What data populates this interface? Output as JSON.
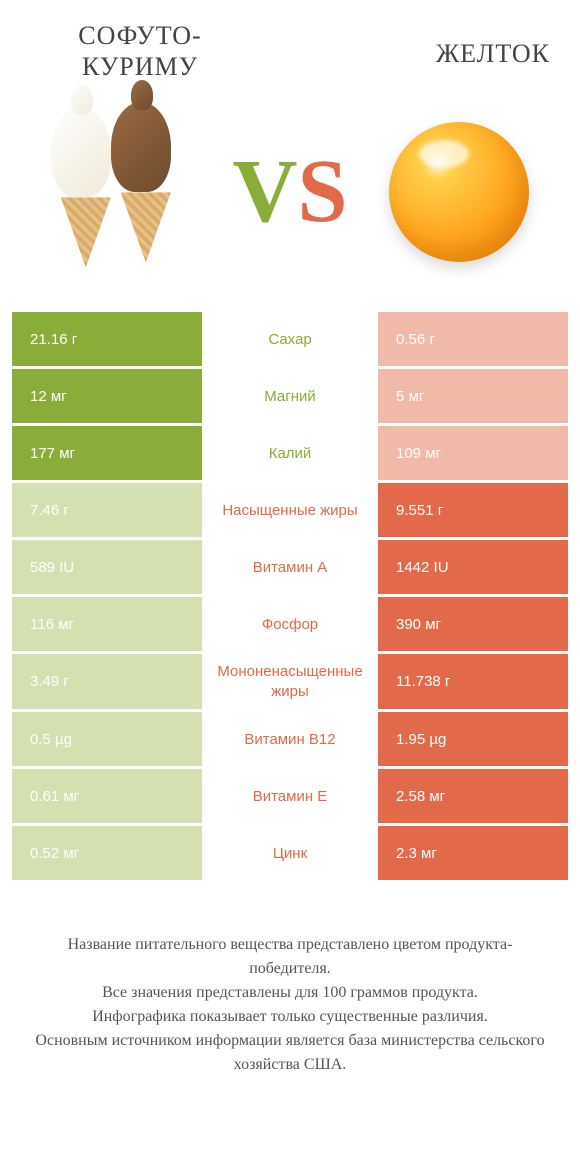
{
  "header": {
    "left_title": "СОФУТО-КУРИМУ",
    "right_title": "ЖЕЛТОК",
    "vs_v": "V",
    "vs_s": "S"
  },
  "colors": {
    "green_strong": "#8aad3a",
    "green_soft": "#d5e0b0",
    "orange_strong": "#e26a4a",
    "orange_soft": "#f0b9a8",
    "background": "#ffffff",
    "text": "#555555"
  },
  "table": {
    "left_win_color": "#8aad3a",
    "right_win_color": "#e26a4a",
    "rows": [
      {
        "left": "21.16 г",
        "label": "Сахар",
        "right": "0.56 г",
        "winner": "left"
      },
      {
        "left": "12 мг",
        "label": "Магний",
        "right": "5 мг",
        "winner": "left"
      },
      {
        "left": "177 мг",
        "label": "Калий",
        "right": "109 мг",
        "winner": "left"
      },
      {
        "left": "7.46 г",
        "label": "Насыщенные жиры",
        "right": "9.551 г",
        "winner": "right"
      },
      {
        "left": "589 IU",
        "label": "Витамин A",
        "right": "1442 IU",
        "winner": "right"
      },
      {
        "left": "116 мг",
        "label": "Фосфор",
        "right": "390 мг",
        "winner": "right"
      },
      {
        "left": "3.49 г",
        "label": "Мононенасыщенные жиры",
        "right": "11.738 г",
        "winner": "right"
      },
      {
        "left": "0.5 µg",
        "label": "Витамин B12",
        "right": "1.95 µg",
        "winner": "right"
      },
      {
        "left": "0.61 мг",
        "label": "Витамин E",
        "right": "2.58 мг",
        "winner": "right"
      },
      {
        "left": "0.52 мг",
        "label": "Цинк",
        "right": "2.3 мг",
        "winner": "right"
      }
    ]
  },
  "footer": {
    "line1": "Название питательного вещества представлено цветом продукта-победителя.",
    "line2": "Все значения представлены для 100 граммов продукта.",
    "line3": "Инфографика показывает только существенные различия.",
    "line4": "Основным источником информации является база министерства сельского хозяйства США."
  },
  "typography": {
    "title_fontsize": 26,
    "vs_fontsize": 90,
    "row_fontsize": 15,
    "footer_fontsize": 16
  }
}
